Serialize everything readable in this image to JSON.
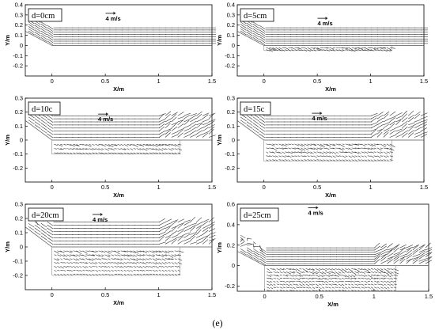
{
  "caption": "(e)",
  "chart_data": [
    {
      "type": "vector_field",
      "title": "d=0cm",
      "d_cm": 0,
      "reference_vector": "4 m/s",
      "xlabel": "X/m",
      "ylabel": "Y/m",
      "xlim": [
        -0.25,
        1.5
      ],
      "ylim": [
        -0.3,
        0.4
      ],
      "xticks": [
        "0",
        "0.5",
        "1",
        "1.5"
      ],
      "yticks": [
        "-0.2",
        "-0.1",
        "0",
        "0.1",
        "0.2",
        "0.3",
        "0.4"
      ],
      "obstacle_depth": 0.0
    },
    {
      "type": "vector_field",
      "title": "d=5cm",
      "d_cm": 5,
      "reference_vector": "4 m/s",
      "xlabel": "X/m",
      "ylabel": "Y/m",
      "xlim": [
        -0.25,
        1.5
      ],
      "ylim": [
        -0.3,
        0.4
      ],
      "xticks": [
        "0",
        "0.5",
        "1",
        "1.5"
      ],
      "yticks": [
        "-0.2",
        "-0.1",
        "0",
        "0.1",
        "0.2",
        "0.3",
        "0.4"
      ],
      "obstacle_depth": 0.05
    },
    {
      "type": "vector_field",
      "title": "d=10c",
      "d_cm": 10,
      "reference_vector": "4 m/s",
      "xlabel": "X/m",
      "ylabel": "Y/m",
      "xlim": [
        -0.25,
        1.5
      ],
      "ylim": [
        -0.3,
        0.3
      ],
      "xticks": [
        "0",
        "0.5",
        "1",
        "1.5"
      ],
      "yticks": [
        "-0.2",
        "-0.1",
        "0",
        "0.1",
        "0.2",
        "0.3"
      ],
      "obstacle_depth": 0.1
    },
    {
      "type": "vector_field",
      "title": "d=15c",
      "d_cm": 15,
      "reference_vector": "4 m/s",
      "xlabel": "X/m",
      "ylabel": "Y/m",
      "xlim": [
        -0.25,
        1.5
      ],
      "ylim": [
        -0.3,
        0.3
      ],
      "xticks": [
        "0",
        "0.5",
        "1",
        "1.5"
      ],
      "yticks": [
        "-0.2",
        "-0.1",
        "0",
        "0.1",
        "0.2",
        "0.3"
      ],
      "obstacle_depth": 0.15
    },
    {
      "type": "vector_field",
      "title": "d=20cm",
      "d_cm": 20,
      "reference_vector": "4 m/s",
      "xlabel": "X/m",
      "ylabel": "Y/m",
      "xlim": [
        -0.25,
        1.5
      ],
      "ylim": [
        -0.3,
        0.3
      ],
      "xticks": [
        "0",
        "0.5",
        "1",
        "1.5"
      ],
      "yticks": [
        "-0.2",
        "-0.1",
        "0",
        "0.1",
        "0.2",
        "0.3"
      ],
      "obstacle_depth": 0.2
    },
    {
      "type": "vector_field",
      "title": "d=25cm",
      "d_cm": 25,
      "reference_vector": "4 m/s",
      "xlabel": "X/m",
      "ylabel": "Y/m",
      "xlim": [
        -0.25,
        1.5
      ],
      "ylim": [
        -0.25,
        0.6
      ],
      "xticks": [
        "0",
        "0.5",
        "1",
        "1.5"
      ],
      "yticks": [
        "-0.2",
        "0",
        "0.2",
        "0.4",
        "0.6"
      ],
      "obstacle_depth": 0.25
    }
  ]
}
